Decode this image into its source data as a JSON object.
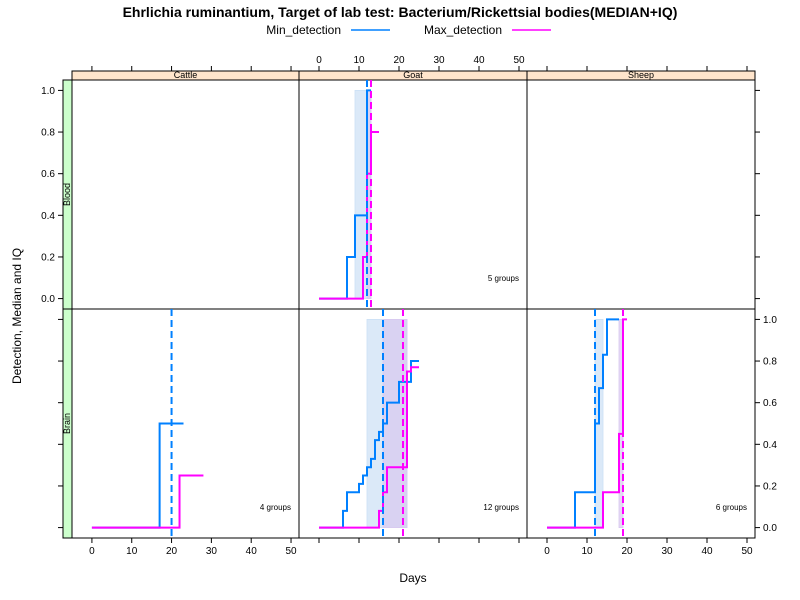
{
  "chart_data": {
    "type": "line",
    "title": "Ehrlichia ruminantium, Target of lab test: Bacterium/Rickettsial bodies(MEDIAN+IQ)",
    "xlabel": "Days",
    "ylabel": "Detection, Median and IQ",
    "xlim": [
      -5,
      52
    ],
    "ylim": [
      -0.05,
      1.05
    ],
    "xticks": [
      "0",
      "10",
      "20",
      "30",
      "40",
      "50"
    ],
    "yticks": [
      "0.0",
      "0.2",
      "0.4",
      "0.6",
      "0.8",
      "1.0"
    ],
    "legend": {
      "position": "top",
      "entries": [
        {
          "name": "Min_detection",
          "color": "#0080ff"
        },
        {
          "name": "Max_detection",
          "color": "#ff00ff"
        }
      ]
    },
    "columns": [
      "Cattle",
      "Goat",
      "Sheep"
    ],
    "rows": [
      "Blood",
      "Brain"
    ],
    "colors": {
      "min": "#0080ff",
      "max": "#ff00ff",
      "strip_top": "#ffe5cc",
      "strip_left": "#ccffcc",
      "band_min": "#cce0f5",
      "band_max": "#d8c8f0"
    },
    "panels": [
      {
        "row": "Blood",
        "col": "Goat",
        "note": "5 groups",
        "min": {
          "x": [
            0,
            7,
            9,
            12,
            13
          ],
          "y": [
            0,
            0.2,
            0.4,
            1.0,
            1.0
          ],
          "median": 12,
          "iq": [
            9,
            13
          ]
        },
        "max": {
          "x": [
            0,
            9,
            11,
            12,
            13,
            14,
            15
          ],
          "y": [
            0,
            0,
            0.2,
            0.6,
            0.8,
            0.8,
            0.8
          ],
          "median": 13,
          "iq": [
            12,
            13
          ]
        }
      },
      {
        "row": "Brain",
        "col": "Cattle",
        "note": "4 groups",
        "min": {
          "x": [
            0,
            17,
            23
          ],
          "y": [
            0,
            0.5,
            0.5
          ],
          "median": 20
        },
        "max": {
          "x": [
            0,
            22,
            28
          ],
          "y": [
            0,
            0.25,
            0.25
          ]
        }
      },
      {
        "row": "Brain",
        "col": "Goat",
        "note": "12 groups",
        "min": {
          "x": [
            0,
            6,
            7,
            10,
            11,
            12,
            13,
            14,
            15,
            16,
            17,
            20,
            23,
            25
          ],
          "y": [
            0,
            0.08,
            0.17,
            0.21,
            0.25,
            0.29,
            0.33,
            0.42,
            0.46,
            0.5,
            0.6,
            0.7,
            0.8,
            0.8
          ],
          "median": 16,
          "iq": [
            12,
            22
          ]
        },
        "max": {
          "x": [
            0,
            15,
            16,
            17,
            21,
            22,
            23,
            25
          ],
          "y": [
            0,
            0.08,
            0.17,
            0.29,
            0.29,
            0.75,
            0.77,
            0.77
          ],
          "median": 21,
          "iq": [
            16,
            22
          ]
        }
      },
      {
        "row": "Brain",
        "col": "Sheep",
        "note": "6 groups",
        "min": {
          "x": [
            0,
            7,
            12,
            13,
            14,
            15,
            18
          ],
          "y": [
            0,
            0.17,
            0.5,
            0.67,
            0.83,
            1.0,
            1.0
          ],
          "median": 12,
          "iq": [
            12,
            14
          ]
        },
        "max": {
          "x": [
            0,
            14,
            18,
            19,
            20
          ],
          "y": [
            0,
            0.17,
            0.45,
            1.0,
            1.0
          ],
          "median": 19,
          "iq": [
            18,
            19
          ]
        }
      }
    ]
  }
}
